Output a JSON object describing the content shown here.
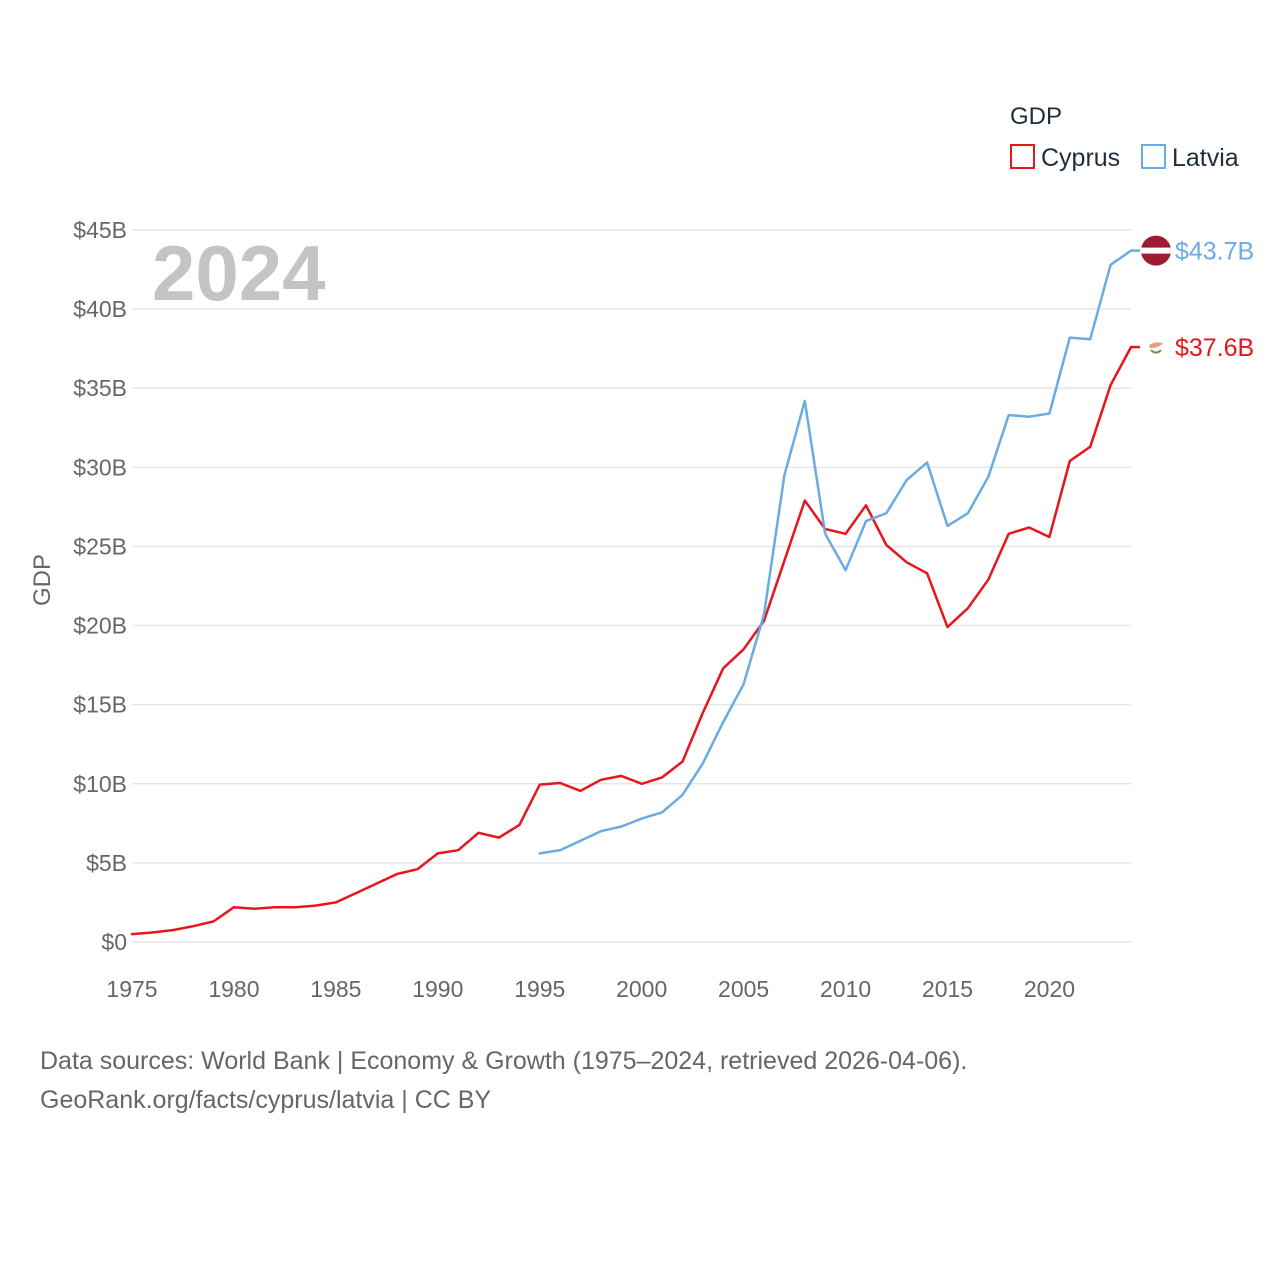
{
  "chart_data": {
    "type": "line",
    "year_label": "2024",
    "ylabel": "GDP",
    "legend_title": "GDP",
    "xlim": [
      1975,
      2024
    ],
    "ylim": [
      0,
      45
    ],
    "x_ticks": [
      1975,
      1980,
      1985,
      1990,
      1995,
      2000,
      2005,
      2010,
      2015,
      2020
    ],
    "x_tick_labels": [
      "1975",
      "1980",
      "1985",
      "1990",
      "1995",
      "2000",
      "2005",
      "2010",
      "2015",
      "2020"
    ],
    "y_ticks": [
      0,
      5,
      10,
      15,
      20,
      25,
      30,
      35,
      40,
      45
    ],
    "y_tick_labels": [
      "$0",
      "$5B",
      "$10B",
      "$15B",
      "$20B",
      "$25B",
      "$30B",
      "$35B",
      "$40B",
      "$45B"
    ],
    "series": [
      {
        "name": "Cyprus",
        "color": "#e8161c",
        "end_label": "$37.6B",
        "flag_icon": "cyprus-flag-icon",
        "x": [
          1975,
          1976,
          1977,
          1978,
          1979,
          1980,
          1981,
          1982,
          1983,
          1984,
          1985,
          1986,
          1987,
          1988,
          1989,
          1990,
          1991,
          1992,
          1993,
          1994,
          1995,
          1996,
          1997,
          1998,
          1999,
          2000,
          2001,
          2002,
          2003,
          2004,
          2005,
          2006,
          2007,
          2008,
          2009,
          2010,
          2011,
          2012,
          2013,
          2014,
          2015,
          2016,
          2017,
          2018,
          2019,
          2020,
          2021,
          2022,
          2023,
          2024
        ],
        "values": [
          0.5,
          0.6,
          0.75,
          1.0,
          1.3,
          2.2,
          2.1,
          2.2,
          2.2,
          2.3,
          2.5,
          3.1,
          3.7,
          4.3,
          4.6,
          5.6,
          5.8,
          6.9,
          6.6,
          7.4,
          9.95,
          10.05,
          9.55,
          10.25,
          10.5,
          10.0,
          10.4,
          11.4,
          14.5,
          17.3,
          18.5,
          20.3,
          24.1,
          27.9,
          26.1,
          25.8,
          27.6,
          25.1,
          24.0,
          23.3,
          19.9,
          21.1,
          22.9,
          25.8,
          26.2,
          25.6,
          30.4,
          31.3,
          35.2,
          37.6
        ]
      },
      {
        "name": "Latvia",
        "color": "#6aabe3",
        "end_label": "$43.7B",
        "flag_icon": "latvia-flag-icon",
        "x": [
          1995,
          1996,
          1997,
          1998,
          1999,
          2000,
          2001,
          2002,
          2003,
          2004,
          2005,
          2006,
          2007,
          2008,
          2009,
          2010,
          2011,
          2012,
          2013,
          2014,
          2015,
          2016,
          2017,
          2018,
          2019,
          2020,
          2021,
          2022,
          2023,
          2024
        ],
        "values": [
          5.6,
          5.8,
          6.4,
          7.0,
          7.3,
          7.8,
          8.2,
          9.3,
          11.3,
          13.9,
          16.3,
          20.7,
          29.5,
          34.2,
          25.8,
          23.5,
          26.6,
          27.1,
          29.2,
          30.3,
          26.3,
          27.1,
          29.4,
          33.3,
          33.2,
          33.4,
          38.2,
          38.1,
          42.8,
          43.7
        ]
      }
    ]
  },
  "source": {
    "line1": "Data sources: World Bank | Economy & Growth (1975–2024, retrieved 2026-04-06).",
    "line2": "GeoRank.org/facts/cyprus/latvia | CC BY"
  }
}
